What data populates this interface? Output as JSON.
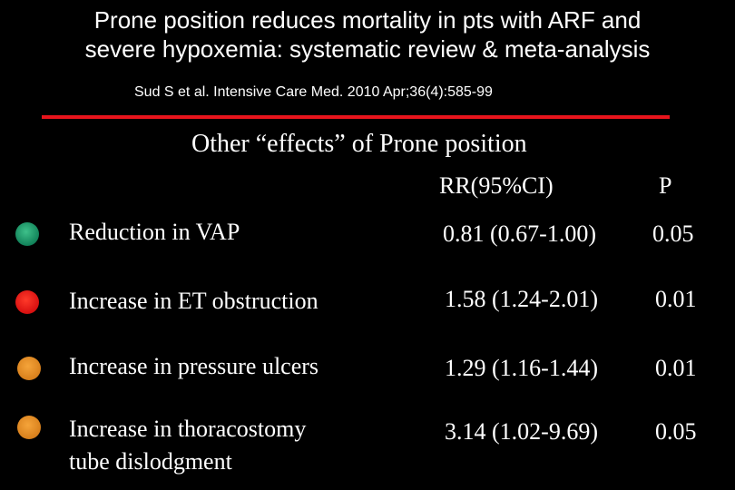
{
  "title_line1": "Prone position reduces mortality in pts with ARF and",
  "title_line2": "severe hypoxemia: systematic review & meta-analysis",
  "citation": "Sud S et al. Intensive Care Med. 2010 Apr;36(4):585-99",
  "subtitle": "Other “effects” of Prone position",
  "columns": {
    "rr": "RR(95%CI)",
    "p": "P"
  },
  "rows": [
    {
      "label": "Reduction in VAP",
      "rr": "0.81 (0.67-1.00)",
      "p": "0.05",
      "bullet_color": "#12835a"
    },
    {
      "label": "Increase in ET obstruction",
      "rr": "1.58 (1.24-2.01)",
      "p": "0.01",
      "bullet_color": "#d81010"
    },
    {
      "label": "Increase in pressure ulcers",
      "rr": "1.29 (1.16-1.44)",
      "p": "0.01",
      "bullet_color": "#d8801c"
    },
    {
      "label_line1": "Increase in thoracostomy",
      "label_line2": "tube dislodgment",
      "rr": "3.14 (1.02-9.69)",
      "p": "0.05",
      "bullet_color": "#d8801c"
    }
  ],
  "divider_color": "#e8141c"
}
